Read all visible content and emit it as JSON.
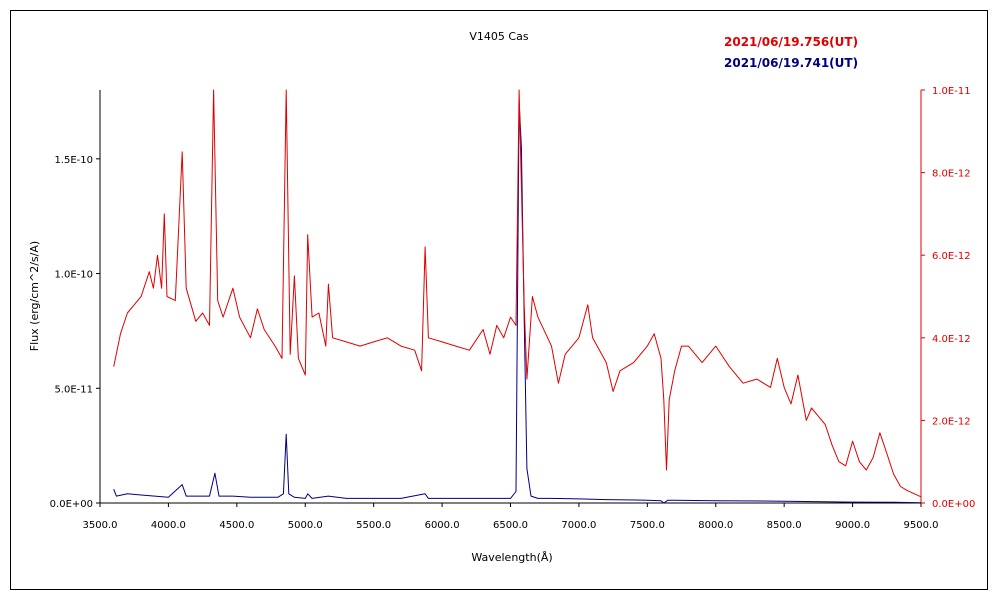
{
  "chart_data": {
    "type": "line",
    "title": "V1405 Cas",
    "xlabel": "Wavelength(Å)",
    "ylabel": "Flux (erg/cm^2/s/A)",
    "xlim": [
      3500,
      9500
    ],
    "ylim_left": [
      0,
      1.8e-10
    ],
    "ylim_right": [
      0,
      1e-11
    ],
    "x_ticks": [
      3500,
      4000,
      4500,
      5000,
      5500,
      6000,
      6500,
      7000,
      7500,
      8000,
      8500,
      9000,
      9500
    ],
    "x_tick_labels": [
      "3500.0",
      "4000.0",
      "4500.0",
      "5000.0",
      "5500.0",
      "6000.0",
      "6500.0",
      "7000.0",
      "7500.0",
      "8000.0",
      "8500.0",
      "9000.0",
      "9500.0"
    ],
    "y_left_ticks": [
      0,
      5e-11,
      1e-10,
      1.5e-10
    ],
    "y_left_tick_labels": [
      "0.0E+00",
      "5.0E-11",
      "1.0E-10",
      "1.5E-10"
    ],
    "y_right_ticks": [
      0,
      2e-12,
      4e-12,
      6e-12,
      8e-12,
      1e-11
    ],
    "y_right_tick_labels": [
      "0.0E+00",
      "2.0E-12",
      "4.0E-12",
      "6.0E-12",
      "8.0E-12",
      "1.0E-11"
    ],
    "grid": false,
    "legend_position": "top-right",
    "series": [
      {
        "name": "2021/06/19.756(UT)",
        "color": "#e00000",
        "axis": "right",
        "points": [
          [
            3600,
            3.3e-12
          ],
          [
            3650,
            4.1e-12
          ],
          [
            3700,
            4.6e-12
          ],
          [
            3750,
            4.8e-12
          ],
          [
            3800,
            5e-12
          ],
          [
            3860,
            5.6e-12
          ],
          [
            3890,
            5.2e-12
          ],
          [
            3920,
            6e-12
          ],
          [
            3950,
            5.2e-12
          ],
          [
            3970,
            7e-12
          ],
          [
            3990,
            5e-12
          ],
          [
            4050,
            4.9e-12
          ],
          [
            4101,
            8.5e-12
          ],
          [
            4130,
            5.2e-12
          ],
          [
            4200,
            4.4e-12
          ],
          [
            4250,
            4.6e-12
          ],
          [
            4300,
            4.3e-12
          ],
          [
            4330,
            1e-11
          ],
          [
            4360,
            4.9e-12
          ],
          [
            4400,
            4.5e-12
          ],
          [
            4471,
            5.2e-12
          ],
          [
            4520,
            4.5e-12
          ],
          [
            4600,
            4e-12
          ],
          [
            4650,
            4.7e-12
          ],
          [
            4700,
            4.2e-12
          ],
          [
            4780,
            3.8e-12
          ],
          [
            4830,
            3.5e-12
          ],
          [
            4861,
            1e-11
          ],
          [
            4890,
            3.6e-12
          ],
          [
            4921,
            5.5e-12
          ],
          [
            4950,
            3.5e-12
          ],
          [
            5000,
            3.1e-12
          ],
          [
            5018,
            6.5e-12
          ],
          [
            5050,
            4.5e-12
          ],
          [
            5100,
            4.6e-12
          ],
          [
            5150,
            3.8e-12
          ],
          [
            5169,
            5.3e-12
          ],
          [
            5200,
            4e-12
          ],
          [
            5300,
            3.9e-12
          ],
          [
            5400,
            3.8e-12
          ],
          [
            5500,
            3.9e-12
          ],
          [
            5600,
            4e-12
          ],
          [
            5700,
            3.8e-12
          ],
          [
            5800,
            3.7e-12
          ],
          [
            5850,
            3.2e-12
          ],
          [
            5876,
            6.2e-12
          ],
          [
            5900,
            4e-12
          ],
          [
            6000,
            3.9e-12
          ],
          [
            6100,
            3.8e-12
          ],
          [
            6200,
            3.7e-12
          ],
          [
            6300,
            4.2e-12
          ],
          [
            6350,
            3.6e-12
          ],
          [
            6400,
            4.3e-12
          ],
          [
            6450,
            4e-12
          ],
          [
            6500,
            4.5e-12
          ],
          [
            6540,
            4.3e-12
          ],
          [
            6563,
            1e-11
          ],
          [
            6600,
            4.8e-12
          ],
          [
            6620,
            3e-12
          ],
          [
            6660,
            5e-12
          ],
          [
            6700,
            4.5e-12
          ],
          [
            6800,
            3.8e-12
          ],
          [
            6850,
            2.9e-12
          ],
          [
            6900,
            3.6e-12
          ],
          [
            7000,
            4e-12
          ],
          [
            7065,
            4.8e-12
          ],
          [
            7100,
            4e-12
          ],
          [
            7200,
            3.4e-12
          ],
          [
            7250,
            2.7e-12
          ],
          [
            7300,
            3.2e-12
          ],
          [
            7400,
            3.4e-12
          ],
          [
            7500,
            3.8e-12
          ],
          [
            7550,
            4.1e-12
          ],
          [
            7600,
            3.5e-12
          ],
          [
            7620,
            2.5e-12
          ],
          [
            7640,
            8e-13
          ],
          [
            7660,
            2.5e-12
          ],
          [
            7700,
            3.2e-12
          ],
          [
            7750,
            3.8e-12
          ],
          [
            7800,
            3.8e-12
          ],
          [
            7900,
            3.4e-12
          ],
          [
            8000,
            3.8e-12
          ],
          [
            8100,
            3.3e-12
          ],
          [
            8200,
            2.9e-12
          ],
          [
            8300,
            3e-12
          ],
          [
            8400,
            2.8e-12
          ],
          [
            8450,
            3.5e-12
          ],
          [
            8500,
            2.8e-12
          ],
          [
            8550,
            2.4e-12
          ],
          [
            8600,
            3.1e-12
          ],
          [
            8662,
            2e-12
          ],
          [
            8700,
            2.3e-12
          ],
          [
            8750,
            2.1e-12
          ],
          [
            8800,
            1.9e-12
          ],
          [
            8850,
            1.4e-12
          ],
          [
            8900,
            1e-12
          ],
          [
            8950,
            9e-13
          ],
          [
            9000,
            1.5e-12
          ],
          [
            9050,
            1e-12
          ],
          [
            9100,
            8e-13
          ],
          [
            9150,
            1.1e-12
          ],
          [
            9200,
            1.7e-12
          ],
          [
            9250,
            1.2e-12
          ],
          [
            9300,
            7e-13
          ],
          [
            9350,
            4e-13
          ],
          [
            9400,
            3e-13
          ],
          [
            9500,
            1.5e-13
          ]
        ]
      },
      {
        "name": "2021/06/19.741(UT)",
        "color": "#000080",
        "axis": "left",
        "points": [
          [
            3600,
            6e-12
          ],
          [
            3620,
            3e-12
          ],
          [
            3700,
            4e-12
          ],
          [
            3800,
            3.5e-12
          ],
          [
            3900,
            3e-12
          ],
          [
            4000,
            2.5e-12
          ],
          [
            4101,
            8e-12
          ],
          [
            4130,
            3e-12
          ],
          [
            4200,
            3e-12
          ],
          [
            4300,
            3e-12
          ],
          [
            4340,
            1.3e-11
          ],
          [
            4370,
            3e-12
          ],
          [
            4471,
            3e-12
          ],
          [
            4600,
            2.5e-12
          ],
          [
            4800,
            2.5e-12
          ],
          [
            4840,
            4e-12
          ],
          [
            4861,
            3e-11
          ],
          [
            4880,
            4e-12
          ],
          [
            4921,
            2.5e-12
          ],
          [
            5000,
            2e-12
          ],
          [
            5018,
            4e-12
          ],
          [
            5050,
            2e-12
          ],
          [
            5169,
            3e-12
          ],
          [
            5300,
            2e-12
          ],
          [
            5500,
            2e-12
          ],
          [
            5700,
            2e-12
          ],
          [
            5876,
            4e-12
          ],
          [
            5900,
            2e-12
          ],
          [
            6200,
            2e-12
          ],
          [
            6400,
            2e-12
          ],
          [
            6500,
            2e-12
          ],
          [
            6540,
            5e-12
          ],
          [
            6563,
            1.75e-10
          ],
          [
            6580,
            1.55e-10
          ],
          [
            6600,
            8e-11
          ],
          [
            6620,
            1.5e-11
          ],
          [
            6650,
            3e-12
          ],
          [
            6700,
            2e-12
          ],
          [
            6800,
            2e-12
          ],
          [
            7000,
            1.8e-12
          ],
          [
            7200,
            1.5e-12
          ],
          [
            7500,
            1.2e-12
          ],
          [
            7600,
            1e-12
          ],
          [
            7620,
            -1e-12
          ],
          [
            7650,
            1.2e-12
          ],
          [
            7700,
            1.2e-12
          ],
          [
            8000,
            1e-12
          ],
          [
            8500,
            8e-13
          ],
          [
            9000,
            4e-13
          ],
          [
            9300,
            3e-13
          ],
          [
            9500,
            1e-13
          ]
        ]
      }
    ]
  }
}
